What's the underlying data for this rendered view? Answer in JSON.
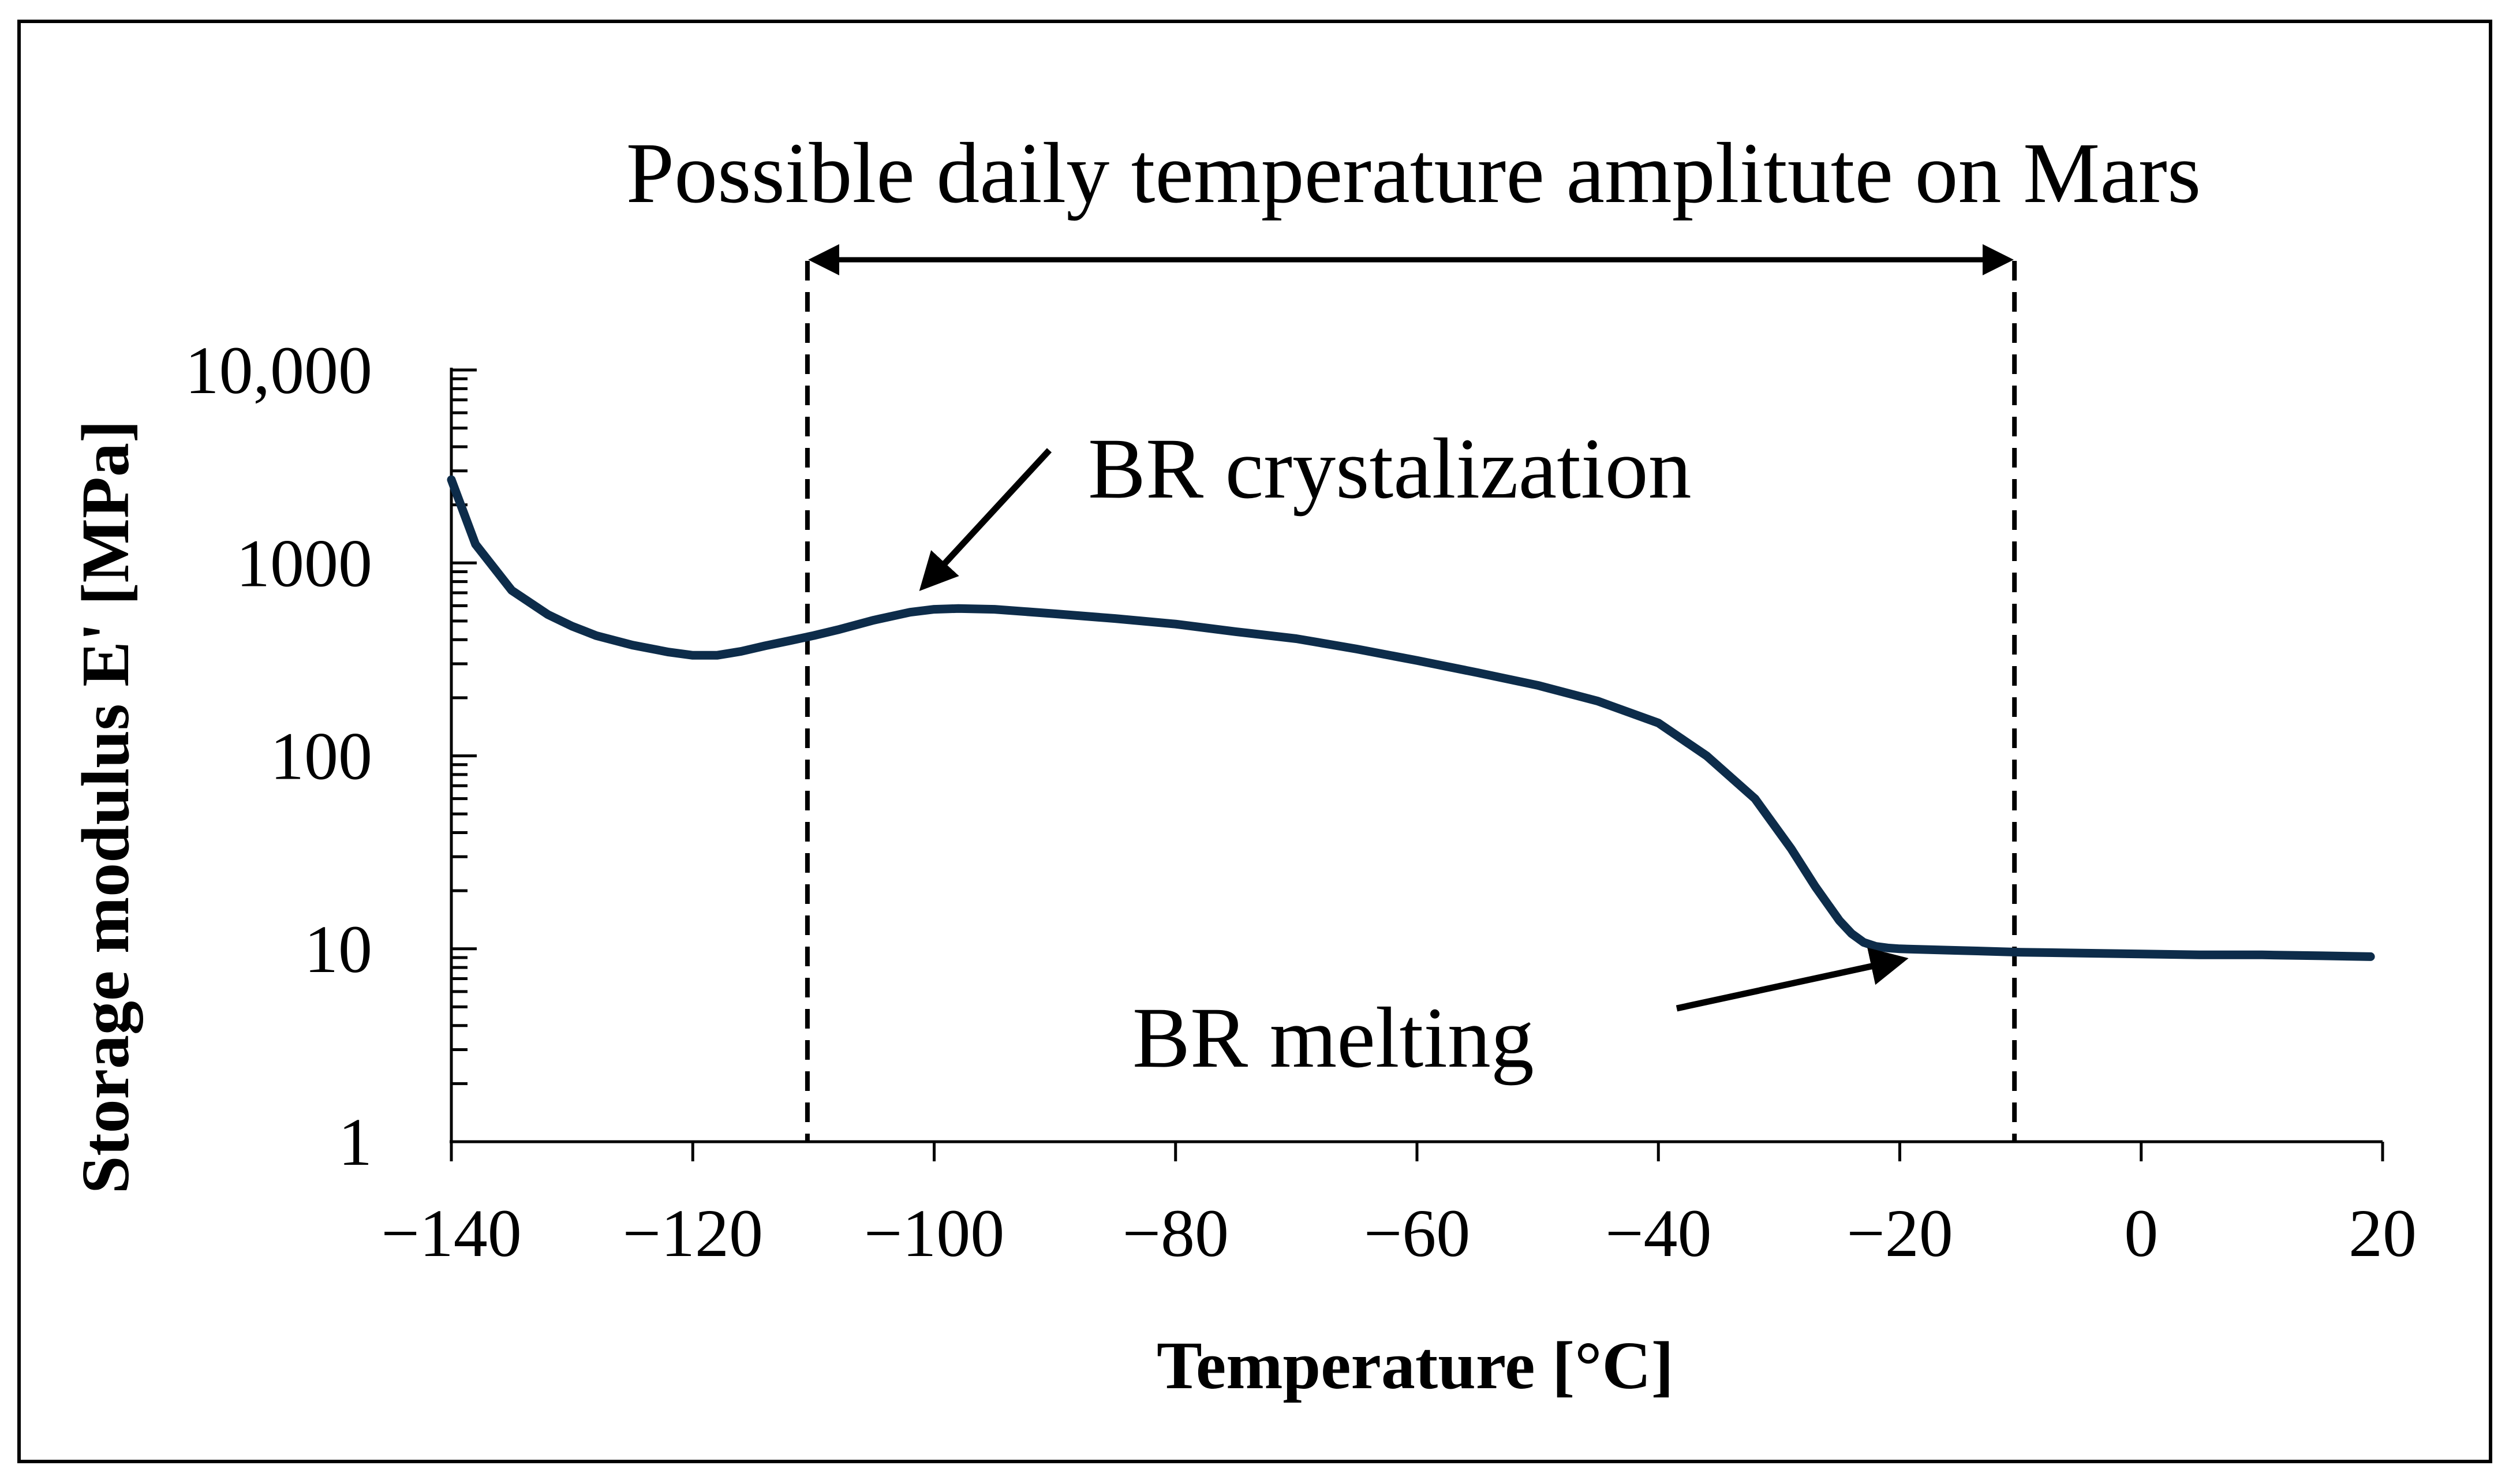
{
  "chart_data": {
    "type": "line",
    "title": "",
    "xlabel": "Temperature [°C]",
    "ylabel": "Storage modulus E' [MPa]",
    "xlim": [
      -140,
      20
    ],
    "ylim": [
      1,
      10000
    ],
    "yscale": "log",
    "grid": false,
    "x_ticks": [
      -140,
      -120,
      -100,
      -80,
      -60,
      -40,
      -20,
      0,
      20
    ],
    "x_tick_labels": [
      "−140",
      "−120",
      "−100",
      "−80",
      "−60",
      "−40",
      "−20",
      "0",
      "20"
    ],
    "y_ticks": [
      1,
      10,
      100,
      1000,
      10000
    ],
    "y_tick_labels": [
      "1",
      "10",
      "100",
      "1000",
      "10,000"
    ],
    "colors": {
      "series": "#0d2c4a",
      "annotation": "#000000"
    },
    "series": [
      {
        "name": "Storage modulus E'",
        "x": [
          -140,
          -138,
          -135,
          -132,
          -130,
          -128,
          -125,
          -122,
          -120,
          -118,
          -116,
          -114,
          -112,
          -110,
          -108,
          -105,
          -102,
          -100,
          -98,
          -95,
          -90,
          -85,
          -80,
          -75,
          -70,
          -65,
          -60,
          -55,
          -50,
          -45,
          -40,
          -36,
          -32,
          -29,
          -27,
          -25,
          -24,
          -23,
          -22,
          -21,
          -20,
          -15,
          -10,
          -5,
          0,
          5,
          10,
          15,
          19
        ],
        "values": [
          2700,
          1250,
          720,
          540,
          470,
          420,
          375,
          345,
          332,
          332,
          348,
          372,
          395,
          420,
          450,
          505,
          555,
          575,
          580,
          575,
          545,
          515,
          482,
          440,
          405,
          358,
          312,
          270,
          232,
          192,
          148,
          100,
          60,
          33,
          21,
          14,
          12,
          10.8,
          10.3,
          10.1,
          10.0,
          9.8,
          9.6,
          9.5,
          9.4,
          9.3,
          9.3,
          9.2,
          9.1
        ]
      }
    ],
    "annotations": {
      "range_label": "Possible daily temperature amplitute on Mars",
      "range_x": [
        -110.5,
        -10.5
      ],
      "crystalization_label": "BR crystalization",
      "crystalization_point": {
        "x": -101,
        "y": 830
      },
      "melting_label": "BR melting",
      "melting_point": {
        "x": -23,
        "y": 10.2
      }
    }
  }
}
